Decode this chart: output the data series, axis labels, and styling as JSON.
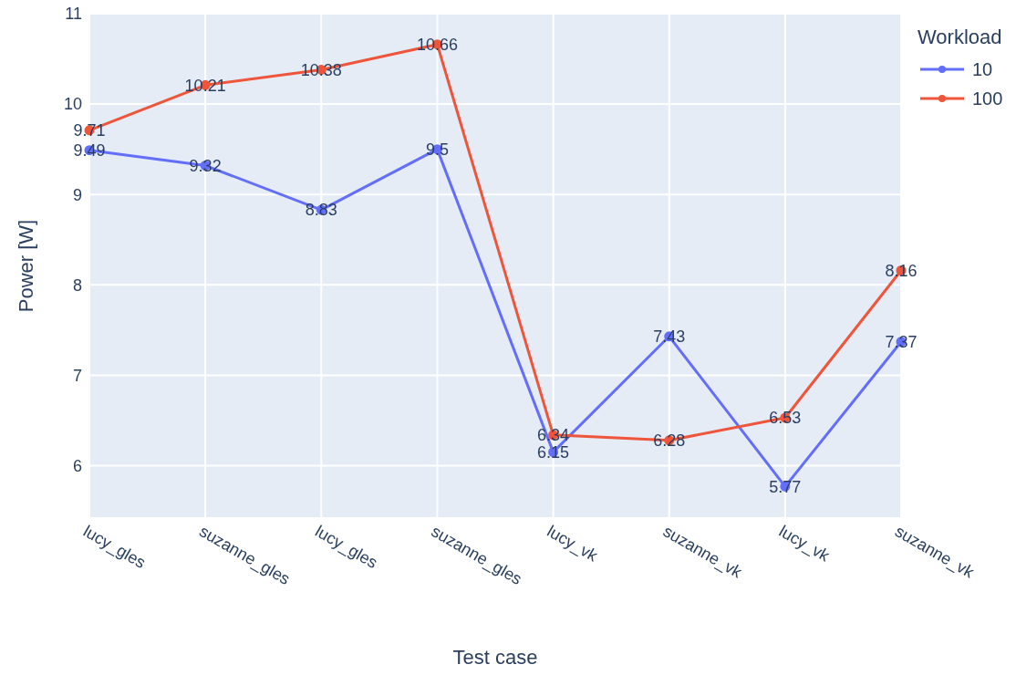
{
  "chart_data": {
    "type": "line",
    "xlabel": "Test case",
    "ylabel": "Power [W]",
    "legend_title": "Workload",
    "categories": [
      "lucy_gles",
      "suzanne_gles",
      "lucy_gles",
      "suzanne_gles",
      "lucy_vk",
      "suzanne_vk",
      "lucy_vk",
      "suzanne_vk"
    ],
    "series": [
      {
        "name": "10",
        "color": "#636efa",
        "values": [
          9.49,
          9.32,
          8.83,
          9.5,
          6.15,
          7.43,
          5.77,
          7.37
        ]
      },
      {
        "name": "100",
        "color": "#ef553b",
        "values": [
          9.71,
          10.21,
          10.38,
          10.66,
          6.34,
          6.28,
          6.53,
          8.16
        ]
      }
    ],
    "ylim": [
      5.42,
      11
    ],
    "yticks": [
      6,
      7,
      8,
      9,
      10,
      11
    ],
    "grid": true,
    "legend": "top right",
    "marker": "circle",
    "line_style": "solid",
    "data_labels": true
  }
}
